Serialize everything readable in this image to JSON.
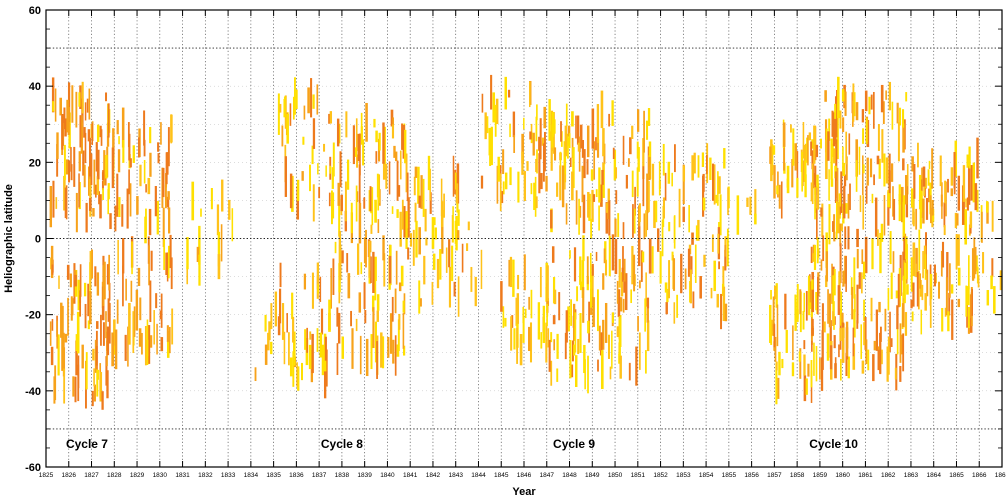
{
  "chart_data": {
    "type": "scatter",
    "title": "",
    "xlabel": "Year",
    "ylabel": "Heliographic latitude",
    "xlim": [
      1825,
      1867
    ],
    "ylim": [
      -60,
      60
    ],
    "x_ticks": [
      1825,
      1826,
      1827,
      1828,
      1829,
      1830,
      1831,
      1832,
      1833,
      1834,
      1835,
      1836,
      1837,
      1838,
      1839,
      1840,
      1841,
      1842,
      1843,
      1844,
      1845,
      1846,
      1847,
      1848,
      1849,
      1850,
      1851,
      1852,
      1853,
      1854,
      1855,
      1856,
      1857,
      1858,
      1859,
      1860,
      1861,
      1862,
      1863,
      1864,
      1865,
      1866,
      1867
    ],
    "y_ticks": [
      -60,
      -40,
      -20,
      0,
      20,
      40,
      60
    ],
    "grid": true,
    "reference_lines_y": [
      -50,
      0,
      50
    ],
    "colors": [
      "#ffe000",
      "#ffc21a",
      "#f7a21a",
      "#ee7a1d"
    ],
    "cycles": [
      {
        "label": "Cycle 7",
        "x": 1826.8,
        "y": -54
      },
      {
        "label": "Cycle 8",
        "x": 1838.0,
        "y": -54
      },
      {
        "label": "Cycle 9",
        "x": 1848.2,
        "y": -54
      },
      {
        "label": "Cycle 10",
        "x": 1859.6,
        "y": -54
      }
    ],
    "bands": [
      {
        "x0": 1825.2,
        "x1": 1827.8,
        "lat_min": 5,
        "lat_max": 38,
        "density": 80,
        "color_bias": 0.75
      },
      {
        "x0": 1825.2,
        "x1": 1827.8,
        "lat_min": -43,
        "lat_max": -5,
        "density": 80,
        "color_bias": 0.75
      },
      {
        "x0": 1827.5,
        "x1": 1830.6,
        "lat_min": 2,
        "lat_max": 30,
        "density": 60,
        "color_bias": 0.7
      },
      {
        "x0": 1827.5,
        "x1": 1830.6,
        "lat_min": -30,
        "lat_max": -2,
        "density": 55,
        "color_bias": 0.7
      },
      {
        "x0": 1830.5,
        "x1": 1833.2,
        "lat_min": -10,
        "lat_max": 14,
        "density": 15,
        "color_bias": 0.3
      },
      {
        "x0": 1834.2,
        "x1": 1835.2,
        "lat_min": -36,
        "lat_max": -14,
        "density": 8,
        "color_bias": 0.3
      },
      {
        "x0": 1835.2,
        "x1": 1837.6,
        "lat_min": 8,
        "lat_max": 38,
        "density": 40,
        "color_bias": 0.35
      },
      {
        "x0": 1835.2,
        "x1": 1837.6,
        "lat_min": -38,
        "lat_max": -8,
        "density": 40,
        "color_bias": 0.35
      },
      {
        "x0": 1837.6,
        "x1": 1840.8,
        "lat_min": 2,
        "lat_max": 32,
        "density": 70,
        "color_bias": 0.5
      },
      {
        "x0": 1837.6,
        "x1": 1840.8,
        "lat_min": -32,
        "lat_max": -2,
        "density": 65,
        "color_bias": 0.5
      },
      {
        "x0": 1840.8,
        "x1": 1843.2,
        "lat_min": 0,
        "lat_max": 18,
        "density": 35,
        "color_bias": 0.45
      },
      {
        "x0": 1840.8,
        "x1": 1843.2,
        "lat_min": -18,
        "lat_max": 0,
        "density": 20,
        "color_bias": 0.35
      },
      {
        "x0": 1843.0,
        "x1": 1844.2,
        "lat_min": -14,
        "lat_max": 6,
        "density": 8,
        "color_bias": 0.3
      },
      {
        "x0": 1844.0,
        "x1": 1847.0,
        "lat_min": 8,
        "lat_max": 40,
        "density": 55,
        "color_bias": 0.35
      },
      {
        "x0": 1845.0,
        "x1": 1847.2,
        "lat_min": -30,
        "lat_max": -8,
        "density": 35,
        "color_bias": 0.3
      },
      {
        "x0": 1847.0,
        "x1": 1851.6,
        "lat_min": 2,
        "lat_max": 34,
        "density": 110,
        "color_bias": 0.45
      },
      {
        "x0": 1847.0,
        "x1": 1851.6,
        "lat_min": -36,
        "lat_max": -2,
        "density": 110,
        "color_bias": 0.4
      },
      {
        "x0": 1851.5,
        "x1": 1855.0,
        "lat_min": 0,
        "lat_max": 22,
        "density": 45,
        "color_bias": 0.3
      },
      {
        "x0": 1851.5,
        "x1": 1855.0,
        "lat_min": -20,
        "lat_max": 0,
        "density": 40,
        "color_bias": 0.3
      },
      {
        "x0": 1855.2,
        "x1": 1856.2,
        "lat_min": 2,
        "lat_max": 10,
        "density": 5,
        "color_bias": 0.3
      },
      {
        "x0": 1856.8,
        "x1": 1858.8,
        "lat_min": 10,
        "lat_max": 30,
        "density": 40,
        "color_bias": 0.35
      },
      {
        "x0": 1856.8,
        "x1": 1858.8,
        "lat_min": -40,
        "lat_max": -12,
        "density": 45,
        "color_bias": 0.35
      },
      {
        "x0": 1858.6,
        "x1": 1862.8,
        "lat_min": 0,
        "lat_max": 38,
        "density": 130,
        "color_bias": 0.55
      },
      {
        "x0": 1858.6,
        "x1": 1862.8,
        "lat_min": -36,
        "lat_max": -2,
        "density": 130,
        "color_bias": 0.55
      },
      {
        "x0": 1862.6,
        "x1": 1866.2,
        "lat_min": 2,
        "lat_max": 22,
        "density": 70,
        "color_bias": 0.45
      },
      {
        "x0": 1862.6,
        "x1": 1866.2,
        "lat_min": -22,
        "lat_max": -2,
        "density": 65,
        "color_bias": 0.45
      },
      {
        "x0": 1866.2,
        "x1": 1867.0,
        "lat_min": -24,
        "lat_max": 14,
        "density": 8,
        "color_bias": 0.3
      }
    ]
  }
}
